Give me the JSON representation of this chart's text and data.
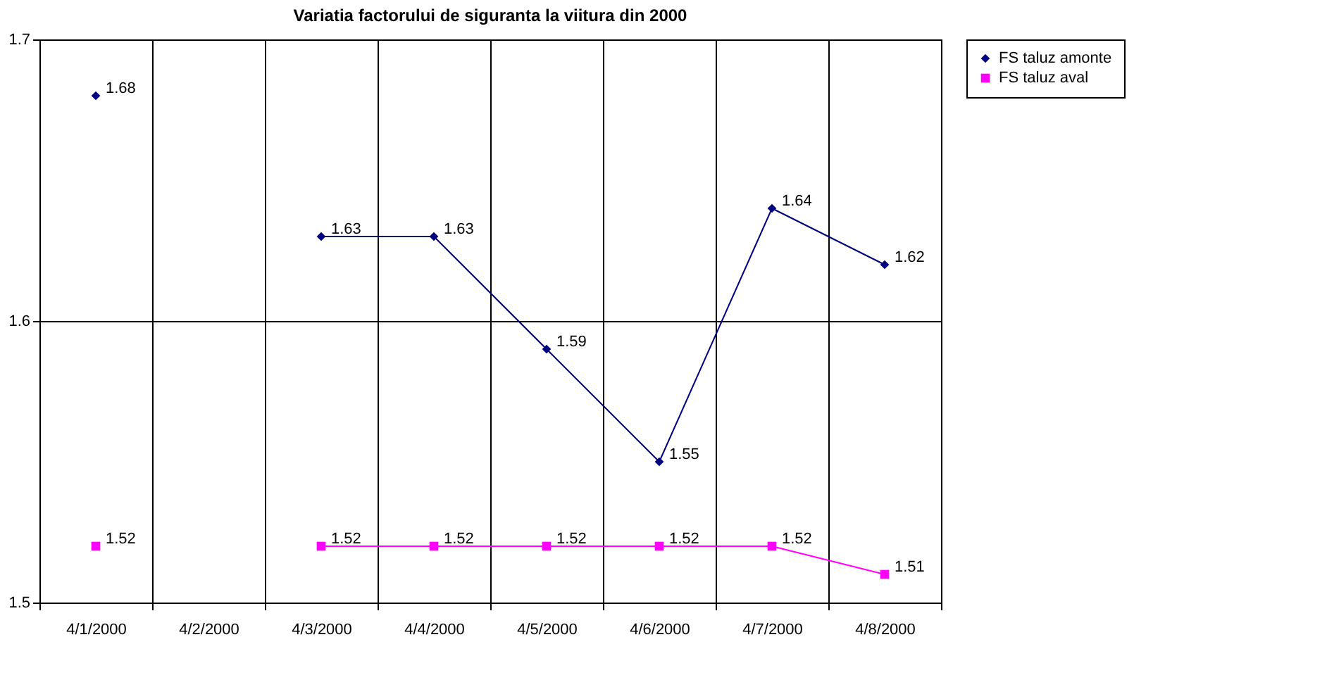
{
  "chart_data": {
    "type": "line",
    "title": "Variatia factorului de siguranta la viitura din 2000",
    "categories": [
      "4/1/2000",
      "4/2/2000",
      "4/3/2000",
      "4/4/2000",
      "4/5/2000",
      "4/6/2000",
      "4/7/2000",
      "4/8/2000"
    ],
    "series": [
      {
        "name": "FS taluz amonte",
        "color": "#000080",
        "marker": "diamond",
        "values": [
          1.68,
          null,
          1.63,
          1.63,
          1.59,
          1.55,
          1.64,
          1.62
        ]
      },
      {
        "name": "FS taluz aval",
        "color": "#ff00ff",
        "marker": "square",
        "values": [
          1.52,
          null,
          1.52,
          1.52,
          1.52,
          1.52,
          1.52,
          1.51
        ]
      }
    ],
    "ylim": [
      1.5,
      1.7
    ],
    "yticks": [
      1.5,
      1.6,
      1.7
    ],
    "grid": true,
    "legend": "right",
    "data_labels": true,
    "line_style": "solid"
  }
}
